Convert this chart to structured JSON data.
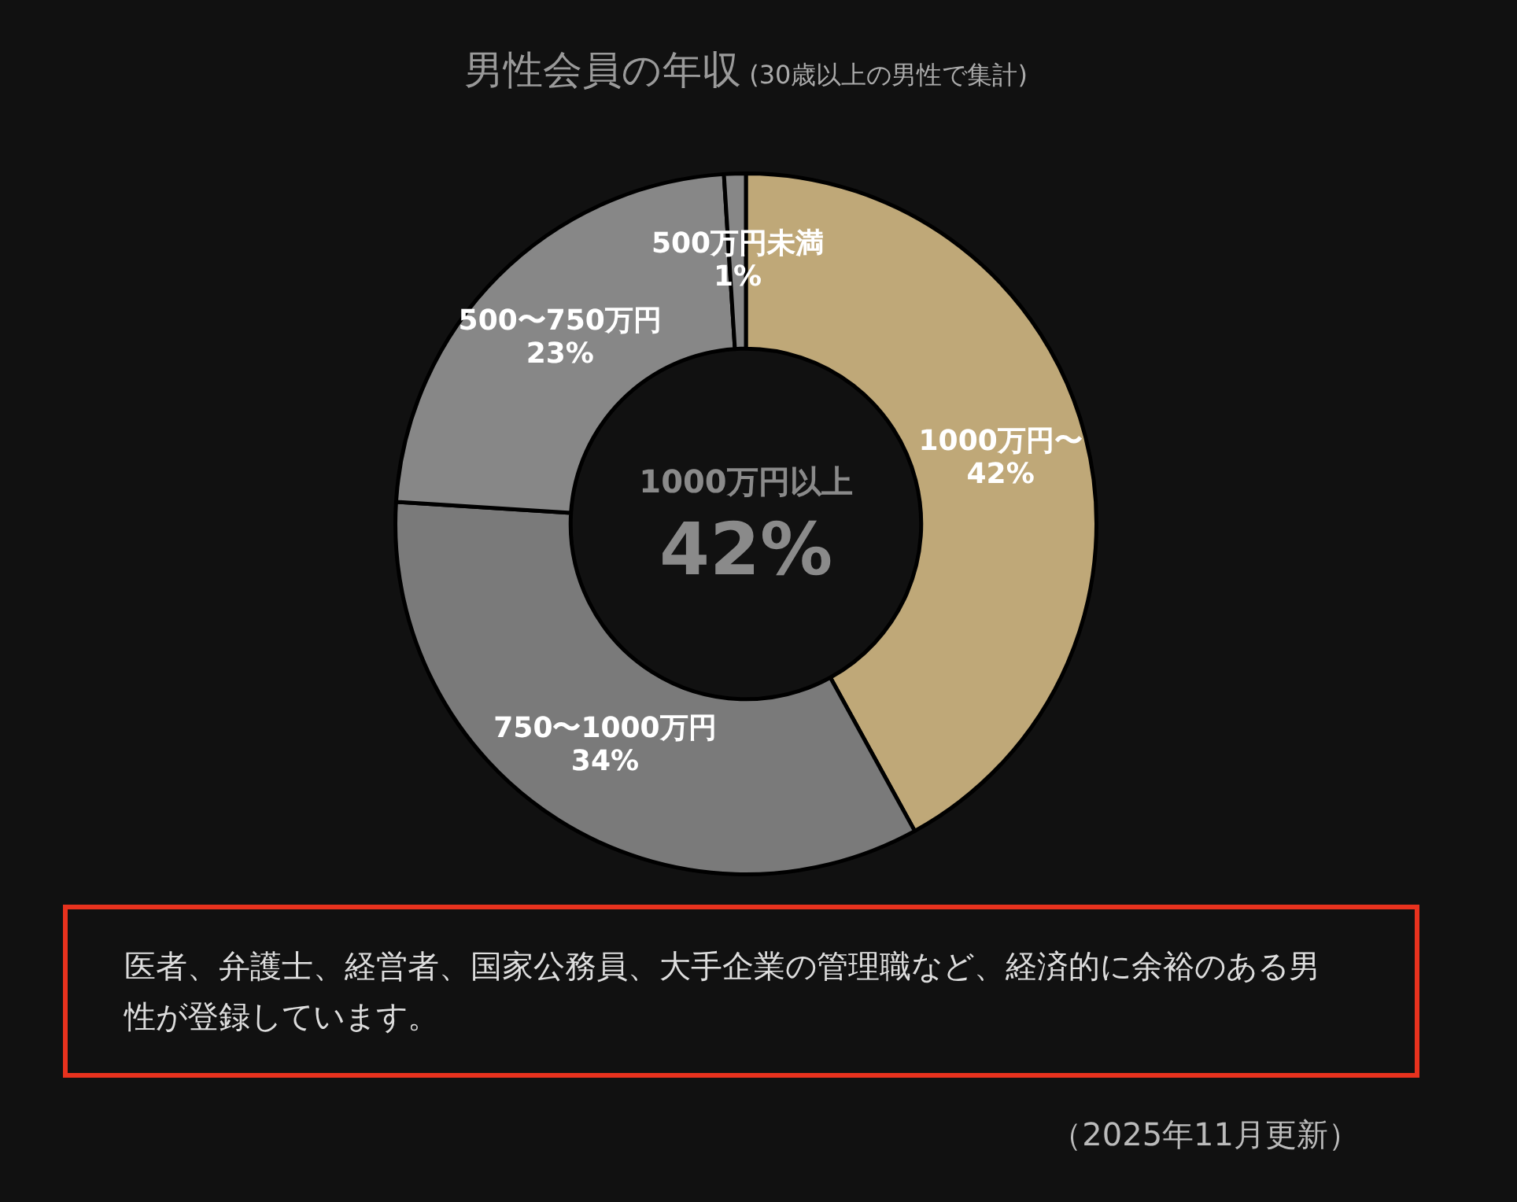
{
  "chart_data": {
    "type": "donut",
    "title": "男性会員の年収",
    "subtitle": "(30歳以上の男性で集計)",
    "categories": [
      "1000万円〜",
      "750〜1000万円",
      "500〜750万円",
      "500万円未満"
    ],
    "values": [
      42,
      34,
      23,
      1
    ],
    "colors": [
      "#bfa878",
      "#7a7a7a",
      "#878787",
      "#878787"
    ],
    "value_labels": [
      "42%",
      "34%",
      "23%",
      "1%"
    ],
    "legend": false,
    "annotations": [
      "1000万円以上",
      "42%",
      "医者、弁護士、経営者、国家公務員、大手企業の管理職など、経済的に余裕のある男性が登録しています。",
      "（2025年11月更新）"
    ]
  }
}
